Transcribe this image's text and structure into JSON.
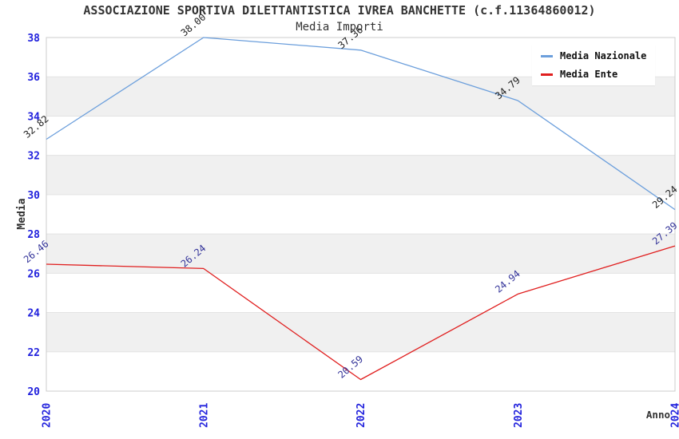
{
  "header": {
    "title": "ASSOCIAZIONE SPORTIVA DILETTANTISTICA IVREA BANCHETTE (c.f.11364860012)",
    "subtitle": "Media Importi"
  },
  "chart_data": {
    "type": "line",
    "title": "ASSOCIAZIONE SPORTIVA DILETTANTISTICA IVREA BANCHETTE (c.f.11364860012)",
    "subtitle": "Media Importi",
    "x": [
      "2020",
      "2021",
      "2022",
      "2023",
      "2024"
    ],
    "xlabel": "Anno",
    "ylabel": "Media",
    "ylim": [
      20,
      38
    ],
    "yticks": [
      20,
      22,
      24,
      26,
      28,
      30,
      32,
      34,
      36,
      38
    ],
    "grid": "alternating horizontal gray bands every 2 units",
    "legend_position": "top-right",
    "point_labels_shown": true,
    "series": [
      {
        "name": "Media Nazionale",
        "color": "#6C9FDC",
        "label_color": "#222222",
        "values": [
          32.82,
          38.0,
          37.36,
          34.79,
          29.24
        ]
      },
      {
        "name": "Media Ente",
        "color": "#E01E1E",
        "label_color": "#333399",
        "values": [
          26.46,
          26.24,
          20.59,
          24.94,
          27.39
        ]
      }
    ],
    "colors": {
      "tick_label": "#2222DD",
      "band_gray": "#F0F0F0",
      "band_white": "#FFFFFF",
      "gridline": "#E3E3E3",
      "plot_border": "#CCCCCC",
      "axis_title": "#333333"
    }
  }
}
